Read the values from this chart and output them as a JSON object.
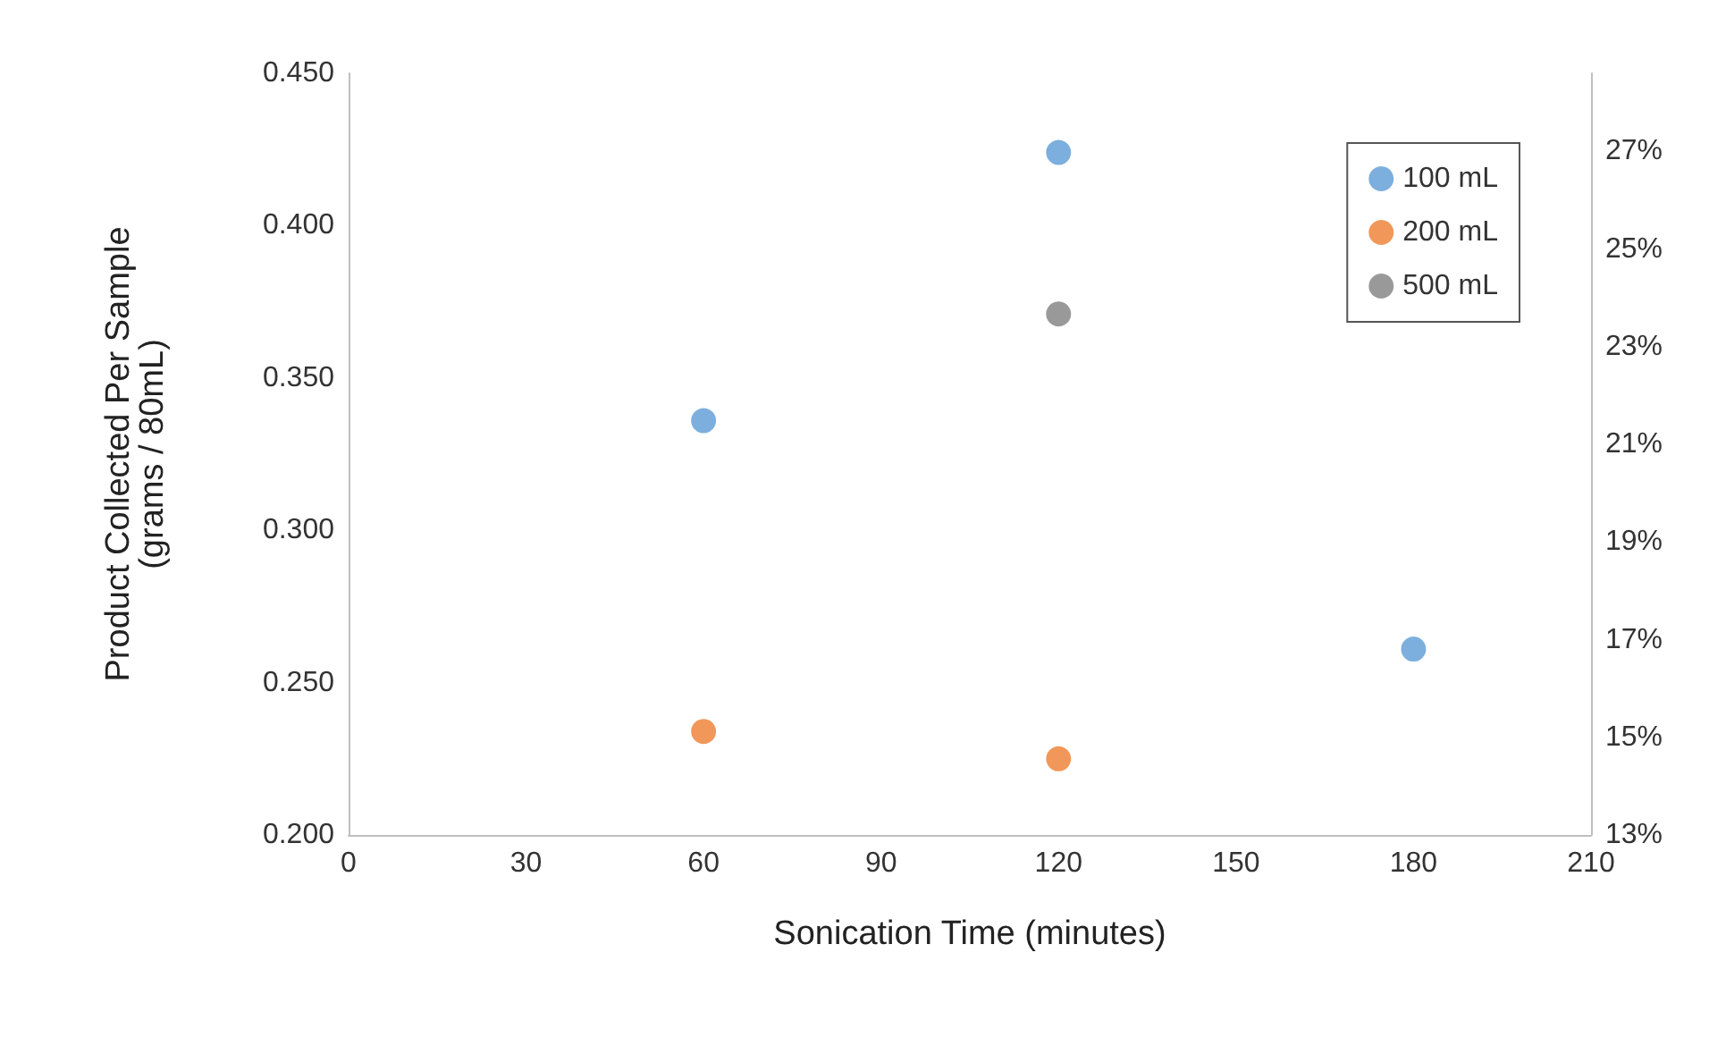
{
  "chart_data": {
    "type": "scatter",
    "xlabel": "Sonication Time (minutes)",
    "ylabel": "Product Collected Per Sample\n(grams / 80mL)",
    "xlim": [
      0,
      210
    ],
    "xticks": [
      0,
      30,
      60,
      90,
      120,
      150,
      180,
      210
    ],
    "ylim": [
      0.2,
      0.45
    ],
    "yticks": [
      {
        "value": 0.2,
        "label": "0.200"
      },
      {
        "value": 0.25,
        "label": "0.250"
      },
      {
        "value": 0.3,
        "label": "0.300"
      },
      {
        "value": 0.35,
        "label": "0.350"
      },
      {
        "value": 0.4,
        "label": "0.400"
      },
      {
        "value": 0.45,
        "label": "0.450"
      }
    ],
    "y2lim": [
      13,
      28.6
    ],
    "y2ticks": [
      {
        "value": 13,
        "label": "13%"
      },
      {
        "value": 15,
        "label": "15%"
      },
      {
        "value": 17,
        "label": "17%"
      },
      {
        "value": 19,
        "label": "19%"
      },
      {
        "value": 21,
        "label": "21%"
      },
      {
        "value": 23,
        "label": "23%"
      },
      {
        "value": 25,
        "label": "25%"
      },
      {
        "value": 27,
        "label": "27%"
      }
    ],
    "grid": false,
    "legend": "top right",
    "marker": "circle",
    "series": [
      {
        "name": "100 mL",
        "color": "#5b9bd5",
        "x": [
          60,
          120,
          180
        ],
        "values": [
          0.336,
          0.424,
          0.261
        ]
      },
      {
        "name": "200 mL",
        "color": "#ed7d31",
        "x": [
          60,
          120
        ],
        "values": [
          0.234,
          0.225
        ]
      },
      {
        "name": "500 mL",
        "color": "#7f7f7f",
        "x": [
          120
        ],
        "values": [
          0.371
        ]
      }
    ]
  }
}
